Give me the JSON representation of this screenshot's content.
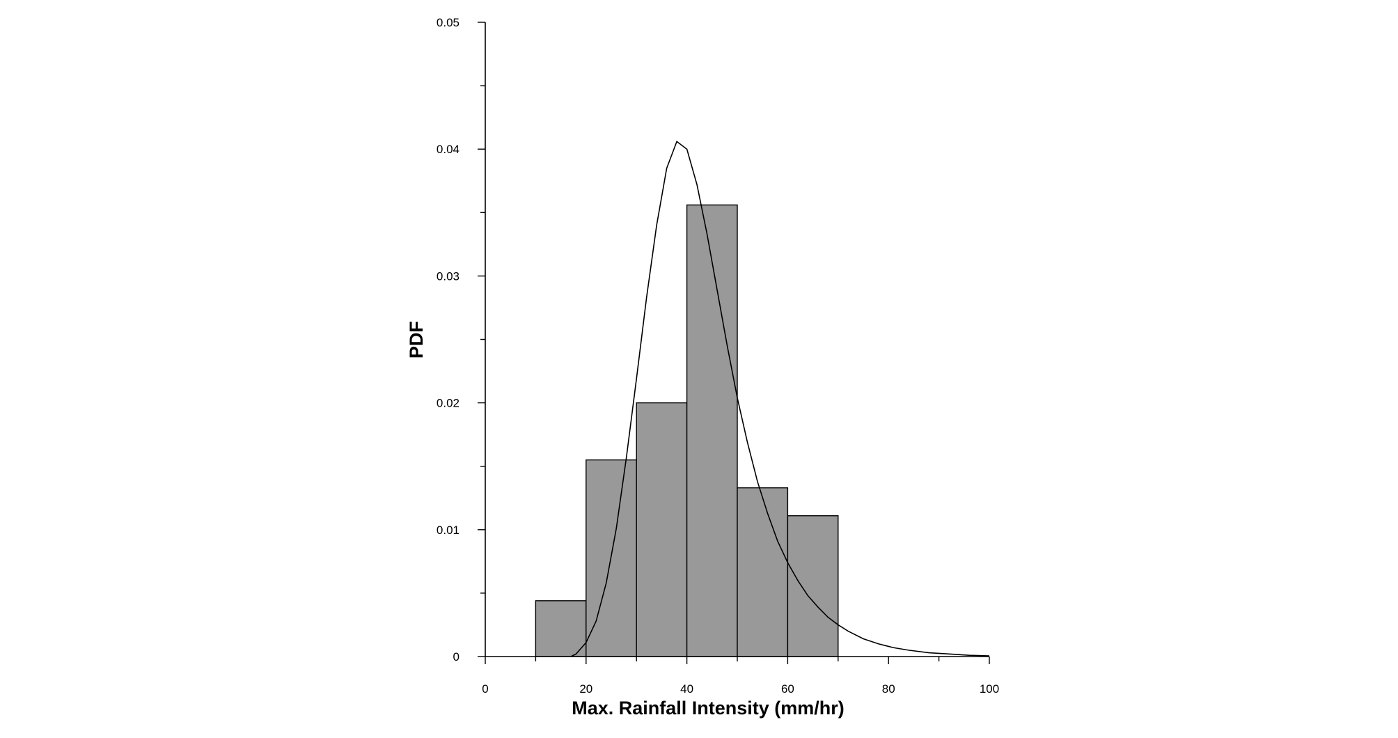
{
  "chart_data": {
    "type": "bar",
    "title": "",
    "xlabel": "Max. Rainfall Intensity (mm/hr)",
    "ylabel": "PDF",
    "xlim": [
      0,
      100
    ],
    "ylim": [
      0,
      0.05
    ],
    "xticks": [
      0,
      20,
      40,
      60,
      80,
      100
    ],
    "xtick_labels": [
      "0",
      "20",
      "40",
      "60",
      "80",
      "100"
    ],
    "xminor_ticks": [
      10,
      30,
      50,
      70,
      90
    ],
    "yticks": [
      0,
      0.01,
      0.02,
      0.03,
      0.04,
      0.05
    ],
    "ytick_labels": [
      "0",
      "0.01",
      "0.02",
      "0.03",
      "0.04",
      "0.05"
    ],
    "yminor_ticks": [
      0.005,
      0.015,
      0.025,
      0.035,
      0.045
    ],
    "grid": false,
    "bars": {
      "bin_edges": [
        10,
        20,
        30,
        40,
        50,
        60,
        70
      ],
      "values": [
        0.0044,
        0.0155,
        0.02,
        0.0356,
        0.0133,
        0.0111
      ],
      "color": "#999999"
    },
    "curve": {
      "x": [
        17,
        18,
        20,
        22,
        24,
        26,
        28,
        30,
        32,
        34,
        36,
        38,
        40,
        42,
        44,
        46,
        48,
        50,
        52,
        54,
        56,
        58,
        60,
        62,
        64,
        66,
        68,
        70,
        72,
        75,
        78,
        81,
        84,
        88,
        92,
        96,
        100
      ],
      "y": [
        0.0,
        0.0002,
        0.0011,
        0.0028,
        0.0058,
        0.0101,
        0.0157,
        0.0219,
        0.0283,
        0.034,
        0.0385,
        0.0406,
        0.04,
        0.0372,
        0.0333,
        0.0289,
        0.0245,
        0.0204,
        0.0169,
        0.0138,
        0.0113,
        0.0091,
        0.0074,
        0.006,
        0.0048,
        0.0039,
        0.0031,
        0.0025,
        0.002,
        0.0014,
        0.001,
        0.0007,
        0.0005,
        0.0003,
        0.0002,
        0.0001,
        5e-05
      ],
      "color": "#000000"
    }
  }
}
